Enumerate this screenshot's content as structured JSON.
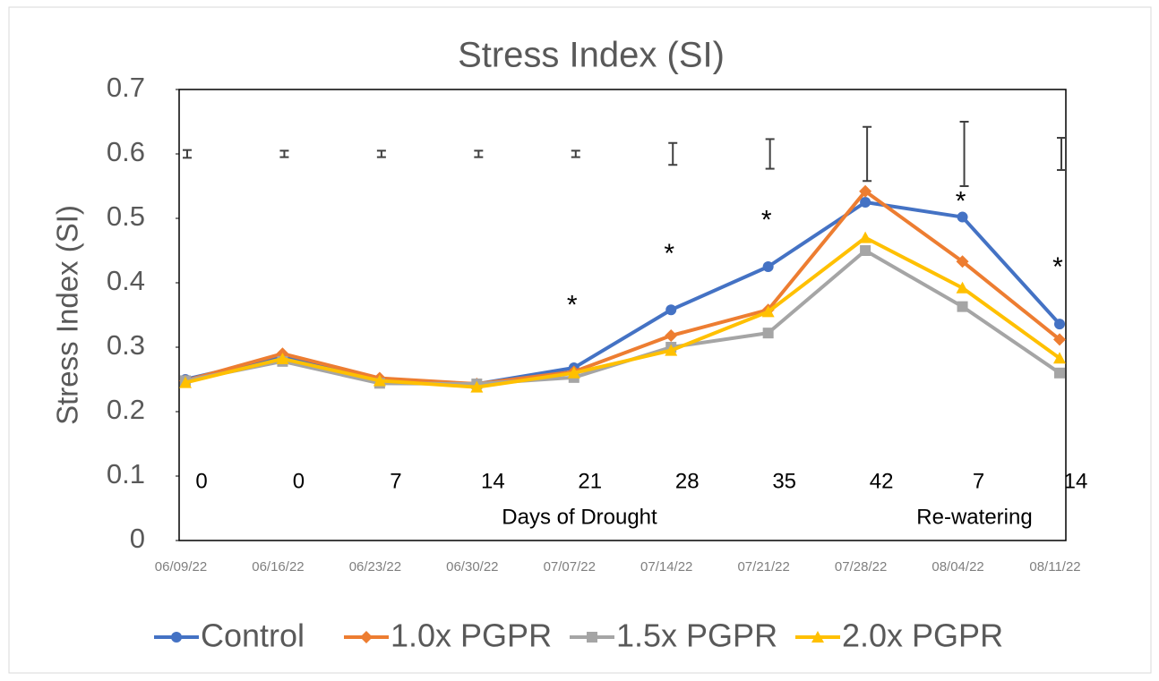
{
  "chart_data": {
    "type": "line",
    "title": "Stress Index (SI)",
    "y_label": "Stress Index (SI)",
    "categories": [
      "06/09/22",
      "06/16/22",
      "06/23/22",
      "06/30/22",
      "07/07/22",
      "07/14/22",
      "07/21/22",
      "07/28/22",
      "08/04/22",
      "08/11/22"
    ],
    "day_labels": [
      "0",
      "0",
      "7",
      "14",
      "21",
      "28",
      "35",
      "42",
      "7",
      "14"
    ],
    "group_labels": [
      "Days of Drought",
      "Re-watering"
    ],
    "series": [
      {
        "name": "Control",
        "color": "#4472c4",
        "marker": "circle",
        "values": [
          0.25,
          0.285,
          0.248,
          0.243,
          0.268,
          0.358,
          0.425,
          0.525,
          0.502,
          0.336
        ]
      },
      {
        "name": "1.0x PGPR",
        "color": "#ed7d31",
        "marker": "diamond",
        "values": [
          0.248,
          0.29,
          0.252,
          0.243,
          0.262,
          0.318,
          0.358,
          0.542,
          0.433,
          0.312
        ]
      },
      {
        "name": "1.5x PGPR",
        "color": "#a5a5a5",
        "marker": "square",
        "values": [
          0.248,
          0.278,
          0.244,
          0.243,
          0.253,
          0.3,
          0.322,
          0.45,
          0.363,
          0.26
        ]
      },
      {
        "name": "2.0x PGPR",
        "color": "#ffc000",
        "marker": "triangle",
        "values": [
          0.245,
          0.282,
          0.248,
          0.238,
          0.26,
          0.295,
          0.355,
          0.47,
          0.392,
          0.283
        ]
      }
    ],
    "error_bars": {
      "values": [
        0.6,
        0.6,
        0.6,
        0.6,
        0.6,
        0.6,
        0.6,
        0.6,
        0.6,
        0.6
      ],
      "errors": [
        0.006,
        0.005,
        0.005,
        0.005,
        0.005,
        0.017,
        0.023,
        0.042,
        0.05,
        0.025
      ],
      "color": "#404040"
    },
    "annotations": [
      {
        "text": "*",
        "x": "07/07/22",
        "y": 0.374
      },
      {
        "text": "*",
        "x": "07/14/22",
        "y": 0.454
      },
      {
        "text": "*",
        "x": "07/21/22",
        "y": 0.506
      },
      {
        "text": "*",
        "x": "08/04/22",
        "y": 0.535
      },
      {
        "text": "*",
        "x": "08/11/22",
        "y": 0.433
      }
    ],
    "ylim": [
      0,
      0.7
    ],
    "yticks": [
      0,
      0.1,
      0.2,
      0.3,
      0.4,
      0.5,
      0.6,
      0.7
    ]
  }
}
